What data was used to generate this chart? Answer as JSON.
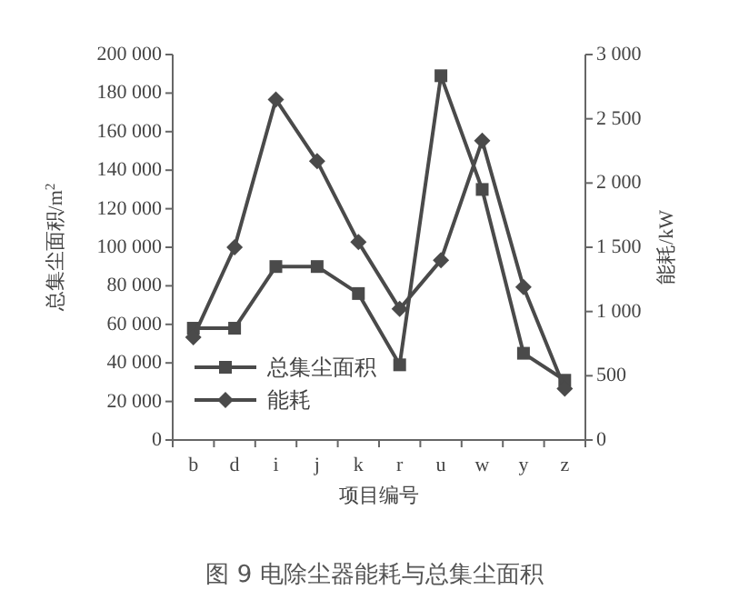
{
  "chart_data": {
    "type": "line",
    "title": "图 9 电除尘器能耗与总集尘面积",
    "xlabel": "项目编号",
    "ylabel": "总集尘面积/m$^{2}$",
    "y2label": "能耗/kW",
    "categories": [
      "b",
      "d",
      "i",
      "j",
      "k",
      "r",
      "u",
      "w",
      "y",
      "z"
    ],
    "ylim": [
      0,
      200000
    ],
    "yticks": [
      0,
      {
        "value": 20000,
        "label": "20 000"
      },
      {
        "value": 40000,
        "label": "40 000"
      },
      {
        "value": 60000,
        "label": "60 000"
      },
      {
        "value": 80000,
        "label": "80 000"
      },
      {
        "value": 100000,
        "label": "100 000"
      },
      {
        "value": 120000,
        "label": "120 000"
      },
      {
        "value": 140000,
        "label": "140 000"
      },
      {
        "value": 160000,
        "label": "160 000"
      },
      {
        "value": 180000,
        "label": "180 000"
      },
      {
        "value": 200000,
        "label": "200 000"
      }
    ],
    "y2lim": [
      0,
      3000
    ],
    "y2ticks": [
      0,
      500,
      {
        "value": 1000,
        "label": "1 000"
      },
      {
        "value": 1500,
        "label": "1 500"
      },
      {
        "value": 2000,
        "label": "2 000"
      },
      {
        "value": 2500,
        "label": "2 500"
      },
      {
        "value": 3000,
        "label": "3 000"
      }
    ],
    "legend": "bottom left",
    "grid": false,
    "series": [
      {
        "name": "总集尘面积",
        "color": "#4a4a4a",
        "marker": "square",
        "values": [
          58000,
          58000,
          90000,
          90000,
          76000,
          39000,
          189000,
          130000,
          45000,
          31000
        ]
      },
      {
        "name": "能耗",
        "color": "#4a4a4a",
        "marker": "diamond",
        "axis": "y2",
        "values": [
          800,
          1500,
          2650,
          2170,
          1540,
          1020,
          1400,
          2330,
          1190,
          400
        ]
      }
    ]
  }
}
